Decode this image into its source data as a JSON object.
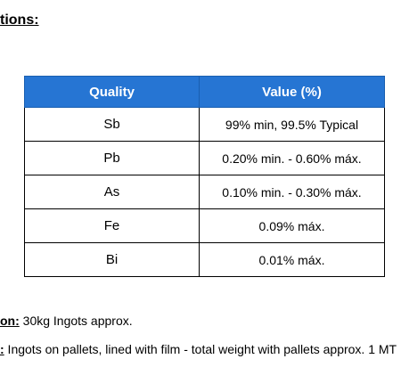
{
  "heading": "tions:",
  "table": {
    "headers": [
      "Quality",
      "Value (%)"
    ],
    "rows": [
      {
        "element": "Sb",
        "value": "99% min, 99.5% Typical"
      },
      {
        "element": "Pb",
        "value": "0.20% min. - 0.60% máx."
      },
      {
        "element": "As",
        "value": "0.10% min. - 0.30% máx."
      },
      {
        "element": "Fe",
        "value": "0.09% máx."
      },
      {
        "element": "Bi",
        "value": "0.01% máx."
      }
    ]
  },
  "presentation": {
    "label": "on:",
    "text": " 30kg Ingots approx."
  },
  "packing": {
    "label": ":",
    "text": " Ingots on pallets, lined with film - total weight with pallets approx. 1 MT"
  },
  "colors": {
    "header_bg": "#2675d3",
    "header_text": "#ffffff"
  }
}
